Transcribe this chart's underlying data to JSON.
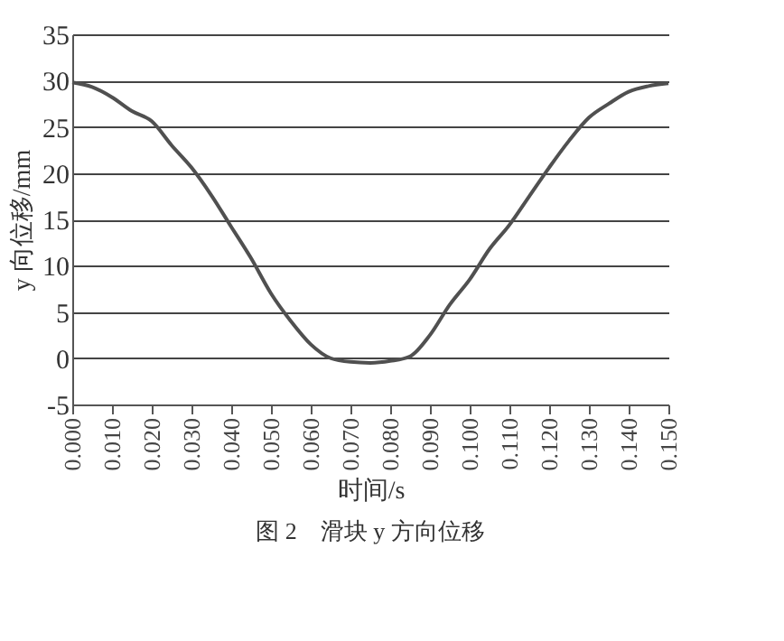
{
  "chart_data": {
    "type": "line",
    "title": "图 2　滑块 y 方向位移",
    "xlabel": "时间/s",
    "ylabel": "y 向位移/mm",
    "x": [
      0,
      0.005,
      0.01,
      0.015,
      0.02,
      0.025,
      0.03,
      0.035,
      0.04,
      0.045,
      0.05,
      0.055,
      0.06,
      0.065,
      0.07,
      0.075,
      0.08,
      0.085,
      0.09,
      0.095,
      0.1,
      0.105,
      0.11,
      0.115,
      0.12,
      0.125,
      0.13,
      0.135,
      0.14,
      0.145,
      0.15
    ],
    "series": [
      {
        "color": "#505050",
        "values": [
          29.8,
          29.3,
          28.2,
          26.7,
          25.6,
          23,
          20.6,
          17.6,
          14.2,
          10.8,
          7,
          4,
          1.5,
          0,
          -0.4,
          -0.5,
          -0.3,
          0.2,
          2.5,
          5.8,
          8.5,
          11.8,
          14.4,
          17.5,
          20.6,
          23.5,
          26,
          27.5,
          28.8,
          29.4,
          29.7
        ]
      }
    ],
    "xlim": [
      0,
      0.15
    ],
    "xticks": [
      {
        "value": 0,
        "label": "0.000"
      },
      {
        "value": 0.01,
        "label": "0.010"
      },
      {
        "value": 0.02,
        "label": "0.020"
      },
      {
        "value": 0.03,
        "label": "0.030"
      },
      {
        "value": 0.04,
        "label": "0.040"
      },
      {
        "value": 0.05,
        "label": "0.050"
      },
      {
        "value": 0.06,
        "label": "0.060"
      },
      {
        "value": 0.07,
        "label": "0.070"
      },
      {
        "value": 0.08,
        "label": "0.080"
      },
      {
        "value": 0.09,
        "label": "0.090"
      },
      {
        "value": 0.1,
        "label": "0.100"
      },
      {
        "value": 0.11,
        "label": "0.110"
      },
      {
        "value": 0.12,
        "label": "0.120"
      },
      {
        "value": 0.13,
        "label": "0.130"
      },
      {
        "value": 0.14,
        "label": "0.140"
      },
      {
        "value": 0.15,
        "label": "0.150"
      }
    ],
    "ylim": [
      -5,
      35
    ],
    "yticks": [
      -5,
      0,
      5,
      10,
      15,
      20,
      25,
      30,
      35
    ],
    "grid": "y",
    "marker": "none",
    "line_style": "solid",
    "legend": false
  }
}
